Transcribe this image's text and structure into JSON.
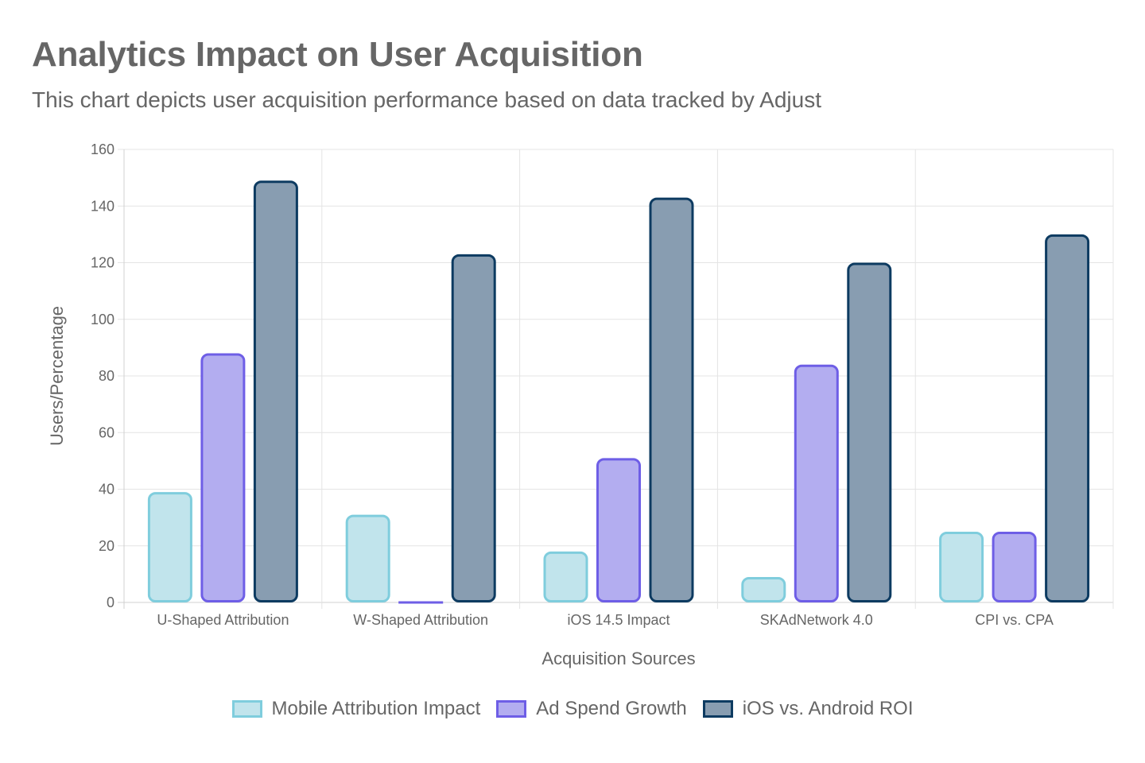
{
  "chart_data": {
    "type": "bar",
    "title": "Analytics Impact on User Acquisition",
    "subtitle": "This chart depicts user acquisition performance based on data tracked by Adjust",
    "xlabel": "Acquisition Sources",
    "ylabel": "Users/Percentage",
    "ylim": [
      0,
      160
    ],
    "yticks": [
      0,
      20,
      40,
      60,
      80,
      100,
      120,
      140,
      160
    ],
    "grid": true,
    "legend_position": "bottom",
    "categories": [
      "U-Shaped Attribution",
      "W-Shaped Attribution",
      "iOS 14.5 Impact",
      "SKAdNetwork 4.0",
      "CPI vs. CPA"
    ],
    "series": [
      {
        "name": "Mobile Attribution Impact",
        "values": [
          39,
          31,
          18,
          9,
          25
        ],
        "fill": "#c1e4ec",
        "border": "#7fcddd"
      },
      {
        "name": "Ad Spend Growth",
        "values": [
          88,
          0,
          51,
          84,
          25
        ],
        "fill": "#b3adf0",
        "border": "#6e5ee6"
      },
      {
        "name": "iOS vs. Android ROI",
        "values": [
          149,
          123,
          143,
          120,
          130
        ],
        "fill": "#889db1",
        "border": "#0d3b61"
      }
    ]
  }
}
